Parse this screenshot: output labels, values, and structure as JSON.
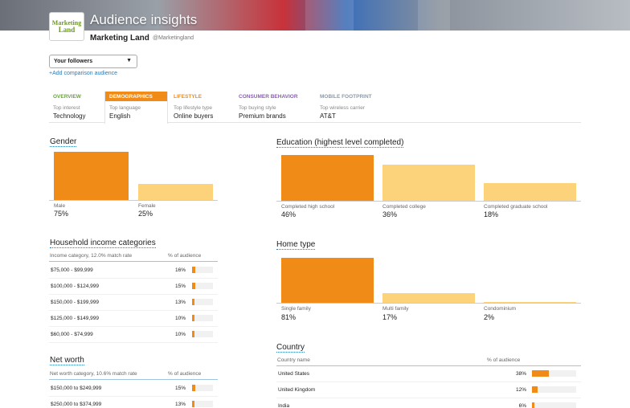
{
  "header": {
    "title": "Audience insights",
    "account_name": "Marketing Land",
    "account_handle": "@Marketingland",
    "logo_line1": "Marketing",
    "logo_line2": "Land"
  },
  "audience": {
    "selected": "Your followers",
    "add_comparison": "+Add comparison audience"
  },
  "colors": {
    "accent": "#f08b18",
    "light_bar": "#fcd27a",
    "link": "#2b7bb9"
  },
  "tabs": [
    {
      "label": "OVERVIEW",
      "sub": "Top interest",
      "value": "Technology",
      "color": "#6ba539",
      "active": false
    },
    {
      "label": "DEMOGRAPHICS",
      "sub": "Top language",
      "value": "English",
      "color": "#ffffff",
      "active": true
    },
    {
      "label": "LIFESTYLE",
      "sub": "Top lifestyle type",
      "value": "Online buyers",
      "color": "#f08b18",
      "active": false
    },
    {
      "label": "CONSUMER BEHAVIOR",
      "sub": "Top buying style",
      "value": "Premium brands",
      "color": "#8a5fb5",
      "active": false
    },
    {
      "label": "MOBILE FOOTPRINT",
      "sub": "Top wireless carrier",
      "value": "AT&T",
      "color": "#8c9aa8",
      "active": false
    }
  ],
  "gender": {
    "title": "Gender",
    "bars": [
      {
        "label": "Male",
        "value_text": "75%",
        "value": 75
      },
      {
        "label": "Female",
        "value_text": "25%",
        "value": 25
      }
    ]
  },
  "education": {
    "title": "Education (highest level completed)",
    "bars": [
      {
        "label": "Completed high school",
        "value_text": "46%",
        "value": 46
      },
      {
        "label": "Completed college",
        "value_text": "36%",
        "value": 36
      },
      {
        "label": "Completed graduate school",
        "value_text": "18%",
        "value": 18
      }
    ]
  },
  "home_type": {
    "title": "Home type",
    "bars": [
      {
        "label": "Single family",
        "value_text": "81%",
        "value": 81
      },
      {
        "label": "Multi family",
        "value_text": "17%",
        "value": 17
      },
      {
        "label": "Condominium",
        "value_text": "2%",
        "value": 2
      }
    ]
  },
  "household_income": {
    "title": "Household income categories",
    "col_name": "Income category, 12.0% match rate",
    "col_pct": "% of audience",
    "rows": [
      {
        "name": "$75,000 - $99,999",
        "pct_text": "16%",
        "pct": 16
      },
      {
        "name": "$100,000 - $124,999",
        "pct_text": "15%",
        "pct": 15
      },
      {
        "name": "$150,000 - $199,999",
        "pct_text": "13%",
        "pct": 13
      },
      {
        "name": "$125,000 - $149,999",
        "pct_text": "10%",
        "pct": 10
      },
      {
        "name": "$60,000 - $74,999",
        "pct_text": "10%",
        "pct": 10
      }
    ]
  },
  "net_worth": {
    "title": "Net worth",
    "col_name": "Net worth category, 10.6% match rate",
    "col_pct": "% of audience",
    "rows": [
      {
        "name": "$150,000 to $249,999",
        "pct_text": "15%",
        "pct": 15
      },
      {
        "name": "$250,000 to $374,999",
        "pct_text": "13%",
        "pct": 13
      }
    ]
  },
  "country": {
    "title": "Country",
    "col_name": "Country name",
    "col_pct": "% of audience",
    "rows": [
      {
        "name": "United States",
        "pct_text": "38%",
        "pct": 38
      },
      {
        "name": "United Kingdom",
        "pct_text": "12%",
        "pct": 12
      },
      {
        "name": "India",
        "pct_text": "6%",
        "pct": 6
      }
    ]
  }
}
